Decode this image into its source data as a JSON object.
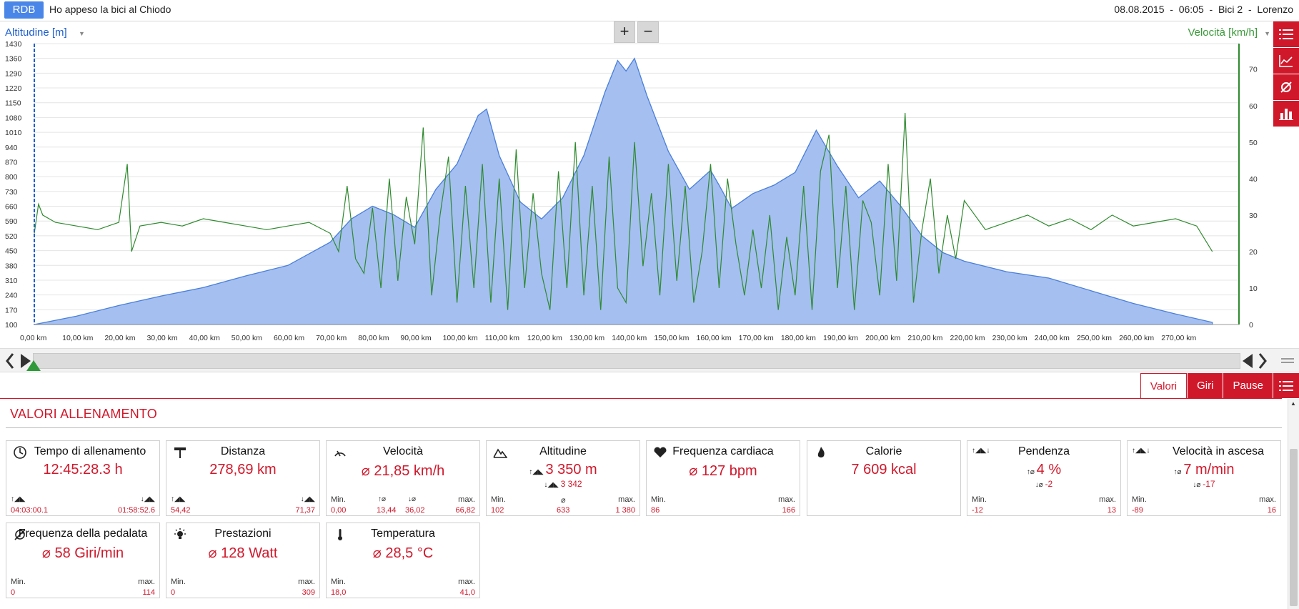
{
  "app": {
    "logo": "RDB",
    "title": "Ho appeso la bici al Chiodo",
    "meta": "08.08.2015  -  06:05  -  Bici 2  -  Lorenzo"
  },
  "chart": {
    "left_axis_title": "Altitudine [m]",
    "right_axis_title": "Velocità [km/h]",
    "zoom_in": "+",
    "zoom_out": "−"
  },
  "chart_data": {
    "type": "area",
    "series": [
      {
        "name": "Altitudine [m]",
        "type": "area",
        "color": "#4a7fd9",
        "x": [
          0,
          10,
          20,
          30,
          40,
          50,
          60,
          70,
          75,
          80,
          85,
          90,
          95,
          100,
          105,
          107,
          110,
          115,
          120,
          125,
          130,
          135,
          138,
          140,
          142,
          145,
          150,
          155,
          160,
          162,
          165,
          170,
          175,
          180,
          183,
          185,
          190,
          195,
          200,
          205,
          210,
          215,
          220,
          230,
          240,
          250,
          255,
          260,
          270,
          278.69
        ],
        "y": [
          100,
          140,
          190,
          235,
          275,
          330,
          380,
          490,
          600,
          660,
          620,
          560,
          740,
          860,
          1090,
          1120,
          900,
          680,
          600,
          700,
          900,
          1200,
          1350,
          1300,
          1360,
          1180,
          920,
          740,
          830,
          760,
          650,
          720,
          760,
          820,
          940,
          1020,
          850,
          700,
          780,
          660,
          520,
          440,
          400,
          350,
          320,
          260,
          230,
          200,
          150,
          110
        ]
      },
      {
        "name": "Velocità [km/h]",
        "type": "line",
        "color": "#2f8a2f",
        "x": [
          0,
          1,
          2,
          5,
          10,
          15,
          20,
          22,
          23,
          25,
          30,
          35,
          40,
          45,
          50,
          55,
          60,
          65,
          70,
          72,
          74,
          76,
          78,
          80,
          82,
          84,
          86,
          88,
          90,
          92,
          94,
          96,
          98,
          100,
          102,
          104,
          106,
          108,
          110,
          112,
          114,
          116,
          118,
          120,
          122,
          124,
          126,
          128,
          130,
          132,
          134,
          136,
          138,
          140,
          142,
          144,
          146,
          148,
          150,
          152,
          154,
          156,
          158,
          160,
          162,
          164,
          166,
          168,
          170,
          172,
          174,
          176,
          178,
          180,
          182,
          184,
          186,
          188,
          190,
          192,
          194,
          196,
          198,
          200,
          202,
          204,
          206,
          208,
          210,
          212,
          214,
          216,
          218,
          220,
          225,
          230,
          235,
          240,
          245,
          250,
          255,
          260,
          265,
          270,
          275,
          278.69
        ],
        "y": [
          25,
          33,
          30,
          28,
          27,
          26,
          28,
          44,
          20,
          27,
          28,
          27,
          29,
          28,
          27,
          26,
          27,
          28,
          25,
          20,
          38,
          18,
          14,
          32,
          10,
          40,
          12,
          35,
          22,
          54,
          8,
          30,
          46,
          6,
          38,
          10,
          44,
          6,
          40,
          4,
          48,
          10,
          36,
          14,
          4,
          42,
          10,
          50,
          8,
          38,
          4,
          46,
          10,
          6,
          50,
          16,
          36,
          8,
          44,
          12,
          38,
          6,
          20,
          44,
          10,
          40,
          22,
          8,
          26,
          10,
          30,
          4,
          24,
          8,
          38,
          4,
          42,
          52,
          10,
          38,
          4,
          34,
          28,
          8,
          44,
          12,
          58,
          6,
          26,
          40,
          14,
          30,
          18,
          34,
          26,
          28,
          30,
          27,
          29,
          26,
          30,
          27,
          28,
          29,
          27,
          20
        ]
      }
    ],
    "xlabel": "",
    "ylabel": "Altitudine [m]",
    "y2label": "Velocità [km/h]",
    "xlim": [
      0,
      285
    ],
    "ylim": [
      100,
      1430
    ],
    "y2lim": [
      0,
      77
    ],
    "x_ticks": [
      "0,00 km",
      "10,00 km",
      "20,00 km",
      "30,00 km",
      "40,00 km",
      "50,00 km",
      "60,00 km",
      "70,00 km",
      "80,00 km",
      "90,00 km",
      "100,00 km",
      "110,00 km",
      "120,00 km",
      "130,00 km",
      "140,00 km",
      "150,00 km",
      "160,00 km",
      "170,00 km",
      "180,00 km",
      "190,00 km",
      "200,00 km",
      "210,00 km",
      "220,00 km",
      "230,00 km",
      "240,00 km",
      "250,00 km",
      "260,00 km",
      "270,00 km"
    ],
    "y_ticks": [
      100,
      170,
      240,
      310,
      380,
      450,
      520,
      590,
      660,
      730,
      800,
      870,
      940,
      1010,
      1080,
      1150,
      1220,
      1290,
      1360,
      1430
    ],
    "y2_ticks": [
      0,
      10,
      20,
      30,
      40,
      50,
      60,
      70
    ],
    "grid": true
  },
  "tabs": [
    {
      "label": "Valori",
      "active": true
    },
    {
      "label": "Giri",
      "active": false
    },
    {
      "label": "Pause",
      "active": false
    }
  ],
  "section_title": "VALORI ALLENAMENTO",
  "cards": {
    "time": {
      "title": "Tempo di allenamento",
      "value": "12:45:28.3 h",
      "l1v": "04:03:00.1",
      "r1v": "01:58:52.6"
    },
    "distance": {
      "title": "Distanza",
      "value": "278,69 km",
      "l1v": "54,42",
      "r1v": "71,37"
    },
    "speed": {
      "title": "Velocità",
      "value": "⌀ 21,85 km/h",
      "min_label": "Min.",
      "min": "0,00",
      "up": "13,44",
      "down": "36,02",
      "max_label": "max.",
      "max": "66,82"
    },
    "altitude": {
      "title": "Altitudine",
      "value": "3 350 m",
      "value2": "3 342",
      "min_label": "Min.",
      "min": "102",
      "avg_sym": "⌀",
      "avg": "633",
      "max_label": "max.",
      "max": "1 380"
    },
    "heart": {
      "title": "Frequenza cardiaca",
      "value": "⌀ 127 bpm",
      "min_label": "Min.",
      "min": "86",
      "max_label": "max.",
      "max": "166"
    },
    "calories": {
      "title": "Calorie",
      "value": "7 609 kcal"
    },
    "gradient": {
      "title": "Pendenza",
      "value": "4 %",
      "value2": "-2",
      "min_label": "Min.",
      "min": "-12",
      "max_label": "max.",
      "max": "13"
    },
    "ascent_speed": {
      "title": "Velocità in ascesa",
      "value": "7 m/min",
      "value2": "-17",
      "min_label": "Min.",
      "min": "-89",
      "max_label": "max.",
      "max": "16"
    },
    "cadence": {
      "title": "Frequenza della pedalata",
      "value": "⌀ 58 Giri/min",
      "min_label": "Min.",
      "min": "0",
      "max_label": "max.",
      "max": "114"
    },
    "power": {
      "title": "Prestazioni",
      "value": "⌀ 128 Watt",
      "min_label": "Min.",
      "min": "0",
      "max_label": "max.",
      "max": "309"
    },
    "temperature": {
      "title": "Temperatura",
      "value": "⌀ 28,5 °C",
      "min_label": "Min.",
      "min": "18,0",
      "max_label": "max.",
      "max": "41,0"
    }
  }
}
